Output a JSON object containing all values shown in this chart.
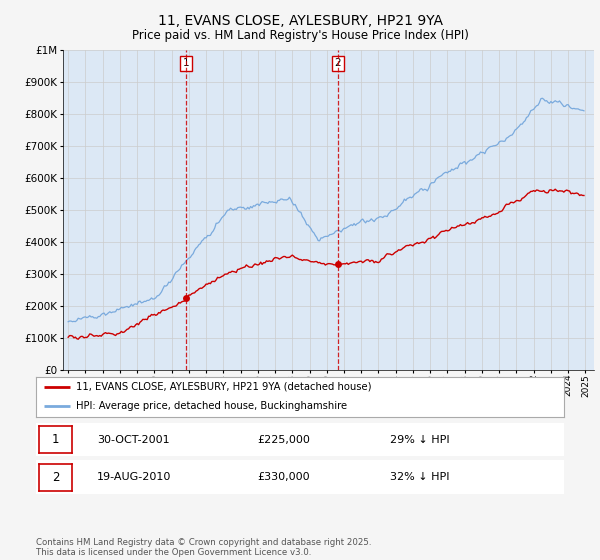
{
  "title": "11, EVANS CLOSE, AYLESBURY, HP21 9YA",
  "subtitle": "Price paid vs. HM Land Registry's House Price Index (HPI)",
  "sale1_date": "30-OCT-2001",
  "sale1_price": 225000,
  "sale1_hpi_pct": "29% ↓ HPI",
  "sale2_date": "19-AUG-2010",
  "sale2_price": 330000,
  "sale2_hpi_pct": "32% ↓ HPI",
  "legend_house": "11, EVANS CLOSE, AYLESBURY, HP21 9YA (detached house)",
  "legend_hpi": "HPI: Average price, detached house, Buckinghamshire",
  "footer": "Contains HM Land Registry data © Crown copyright and database right 2025.\nThis data is licensed under the Open Government Licence v3.0.",
  "house_color": "#cc0000",
  "hpi_color": "#7aaadd",
  "vline_color": "#cc0000",
  "shade_color": "#dce8f5",
  "bg_color": "#dce8f5",
  "grid_color": "#cccccc",
  "ylim": [
    0,
    1000000
  ],
  "yticks": [
    0,
    100000,
    200000,
    300000,
    400000,
    500000,
    600000,
    700000,
    800000,
    900000,
    1000000
  ],
  "sale1_x": 2001.83,
  "sale2_x": 2010.63,
  "xmin": 1995,
  "xmax": 2025
}
